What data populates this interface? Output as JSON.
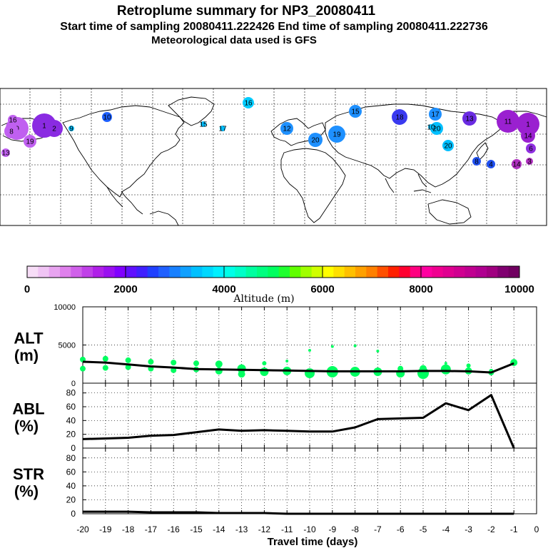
{
  "header": {
    "title": "Retroplume summary for NP3_20080411",
    "sampling": "Start time of sampling 20080411.222426     End time of sampling 20080411.222736",
    "met": "Meteorological data used is GFS"
  },
  "map": {
    "labels": [
      {
        "t": "0",
        "c": "#c060f0"
      },
      {
        "t": "1",
        "c": "#8a2be2"
      },
      {
        "t": "2",
        "c": "#8a2be2"
      },
      {
        "t": "16",
        "c": "#c060f0"
      },
      {
        "t": "19",
        "c": "#c060f0"
      },
      {
        "t": "8",
        "c": "#c060f0"
      },
      {
        "t": "13",
        "c": "#c060f0"
      },
      {
        "t": "10",
        "c": "#1e60ff"
      },
      {
        "t": "9",
        "c": "#00bfff"
      },
      {
        "t": "15",
        "c": "#00bfff"
      },
      {
        "t": "17",
        "c": "#00bfff"
      },
      {
        "t": "16",
        "c": "#00ccff"
      },
      {
        "t": "12",
        "c": "#1e90ff"
      },
      {
        "t": "20",
        "c": "#1e90ff"
      },
      {
        "t": "19",
        "c": "#1e90ff"
      },
      {
        "t": "20",
        "c": "#00bfff"
      },
      {
        "t": "15",
        "c": "#1e90ff"
      },
      {
        "t": "18",
        "c": "#3a3af0"
      },
      {
        "t": "17",
        "c": "#1e90ff"
      },
      {
        "t": "20",
        "c": "#00bfff"
      },
      {
        "t": "10",
        "c": "#00bfff"
      },
      {
        "t": "13",
        "c": "#6a2be2"
      },
      {
        "t": "11",
        "c": "#9a20d0"
      },
      {
        "t": "1",
        "c": "#9a20d0"
      },
      {
        "t": "14",
        "c": "#9a20d0"
      },
      {
        "t": "8",
        "c": "#2050f0"
      },
      {
        "t": "4",
        "c": "#2050f0"
      },
      {
        "t": "6",
        "c": "#9030e0"
      },
      {
        "t": "14",
        "c": "#b030c0"
      },
      {
        "t": "3",
        "c": "#b030c0"
      }
    ]
  },
  "colorbar": {
    "colors": [
      "#f7ddf7",
      "#f0c4f4",
      "#e8a4f0",
      "#df80ec",
      "#d060ea",
      "#c040e8",
      "#b020e8",
      "#9a10f0",
      "#8000ff",
      "#6010ff",
      "#4020ff",
      "#2040ff",
      "#2060ff",
      "#1880ff",
      "#10a0ff",
      "#00c0ff",
      "#00d8ff",
      "#00f0ff",
      "#00ffe8",
      "#00ffc8",
      "#00ffa0",
      "#00ff80",
      "#00ff60",
      "#20ff30",
      "#60ff00",
      "#a0ff00",
      "#d0ff00",
      "#ffff00",
      "#ffe000",
      "#ffc000",
      "#ffa000",
      "#ff8000",
      "#ff5000",
      "#ff2000",
      "#ff0030",
      "#ff0080",
      "#ff00a0",
      "#f00090",
      "#e00090",
      "#d00090",
      "#c00090",
      "#b00090",
      "#a00080",
      "#800070",
      "#700060"
    ],
    "tick_labels": [
      "0",
      "2000",
      "4000",
      "6000",
      "8000",
      "10000"
    ],
    "label": "Altitude (m)"
  },
  "chart_data": [
    {
      "type": "line",
      "panel": "ALT",
      "ylabel_top": "ALT",
      "ylabel_unit": "(m)",
      "ylim": [
        0,
        10000
      ],
      "yticks": [
        "0",
        "5000",
        "10000"
      ],
      "x": [
        -20,
        -19,
        -18,
        -17,
        -16,
        -15,
        -14,
        -13,
        -12,
        -11,
        -10,
        -9,
        -8,
        -7,
        -6,
        -5,
        -4,
        -3,
        -2,
        -1
      ],
      "series": [
        {
          "name": "ALT mean",
          "values": [
            2800,
            2700,
            2450,
            2200,
            2050,
            1850,
            1800,
            1750,
            1700,
            1650,
            1600,
            1550,
            1550,
            1550,
            1550,
            1600,
            1600,
            1550,
            1400,
            2600
          ]
        }
      ],
      "scatter_color": "#00ff60",
      "scatter": [
        {
          "x": -20,
          "y": 3100,
          "r": 4
        },
        {
          "x": -20,
          "y": 1900,
          "r": 4
        },
        {
          "x": -19,
          "y": 3200,
          "r": 4
        },
        {
          "x": -19,
          "y": 2000,
          "r": 4
        },
        {
          "x": -18,
          "y": 3000,
          "r": 4
        },
        {
          "x": -18,
          "y": 2100,
          "r": 4
        },
        {
          "x": -17,
          "y": 2800,
          "r": 4
        },
        {
          "x": -17,
          "y": 1900,
          "r": 4
        },
        {
          "x": -16,
          "y": 2700,
          "r": 4
        },
        {
          "x": -16,
          "y": 1700,
          "r": 4
        },
        {
          "x": -15,
          "y": 2600,
          "r": 4
        },
        {
          "x": -15,
          "y": 1800,
          "r": 4
        },
        {
          "x": -14,
          "y": 2500,
          "r": 5
        },
        {
          "x": -14,
          "y": 1600,
          "r": 5
        },
        {
          "x": -13,
          "y": 1900,
          "r": 6
        },
        {
          "x": -13,
          "y": 1200,
          "r": 5
        },
        {
          "x": -12,
          "y": 2600,
          "r": 3
        },
        {
          "x": -12,
          "y": 1500,
          "r": 6
        },
        {
          "x": -11,
          "y": 2900,
          "r": 2
        },
        {
          "x": -11,
          "y": 1600,
          "r": 6
        },
        {
          "x": -10,
          "y": 4300,
          "r": 2
        },
        {
          "x": -10,
          "y": 1300,
          "r": 7
        },
        {
          "x": -9,
          "y": 4800,
          "r": 2
        },
        {
          "x": -9,
          "y": 1500,
          "r": 8
        },
        {
          "x": -8,
          "y": 4900,
          "r": 2
        },
        {
          "x": -8,
          "y": 1500,
          "r": 7
        },
        {
          "x": -7,
          "y": 4200,
          "r": 2
        },
        {
          "x": -7,
          "y": 1500,
          "r": 6
        },
        {
          "x": -6,
          "y": 1300,
          "r": 6
        },
        {
          "x": -6,
          "y": 1900,
          "r": 4
        },
        {
          "x": -5,
          "y": 1300,
          "r": 8
        },
        {
          "x": -5,
          "y": 1900,
          "r": 5
        },
        {
          "x": -4,
          "y": 1800,
          "r": 7
        },
        {
          "x": -4,
          "y": 2600,
          "r": 2
        },
        {
          "x": -3,
          "y": 1600,
          "r": 5
        },
        {
          "x": -3,
          "y": 2300,
          "r": 3
        },
        {
          "x": -2,
          "y": 1400,
          "r": 4
        },
        {
          "x": -2,
          "y": 1600,
          "r": 3
        },
        {
          "x": -1,
          "y": 2700,
          "r": 5
        }
      ]
    },
    {
      "type": "line",
      "panel": "ABL",
      "ylabel_top": "ABL",
      "ylabel_unit": "(%)",
      "ylim": [
        0,
        90
      ],
      "yticks": [
        "0",
        "20",
        "40",
        "60",
        "80"
      ],
      "x": [
        -20,
        -19,
        -18,
        -17,
        -16,
        -15,
        -14,
        -13,
        -12,
        -11,
        -10,
        -9,
        -8,
        -7,
        -6,
        -5,
        -4,
        -3,
        -2,
        -1
      ],
      "series": [
        {
          "name": "ABL",
          "values": [
            13,
            14,
            15,
            18,
            19,
            23,
            27,
            25,
            26,
            25,
            24,
            24,
            30,
            42,
            43,
            44,
            65,
            55,
            77,
            0
          ]
        }
      ]
    },
    {
      "type": "line",
      "panel": "STR",
      "ylabel_top": "STR",
      "ylabel_unit": "(%)",
      "ylim": [
        0,
        90
      ],
      "yticks": [
        "0",
        "20",
        "40",
        "60",
        "80"
      ],
      "x": [
        -20,
        -19,
        -18,
        -17,
        -16,
        -15,
        -14,
        -13,
        -12,
        -11,
        -10,
        -9,
        -8,
        -7,
        -6,
        -5,
        -4,
        -3,
        -2,
        -1
      ],
      "series": [
        {
          "name": "STR",
          "values": [
            3,
            3,
            3,
            2,
            2,
            2,
            1,
            1,
            1,
            0,
            0,
            0,
            0,
            0,
            0,
            0,
            0,
            0,
            0,
            0
          ]
        }
      ],
      "xlabel": "Travel time (days)",
      "xticks": [
        "-20",
        "-19",
        "-18",
        "-17",
        "-16",
        "-15",
        "-14",
        "-13",
        "-12",
        "-11",
        "-10",
        "-9",
        "-8",
        "-7",
        "-6",
        "-5",
        "-4",
        "-3",
        "-2",
        "-1",
        "0"
      ]
    }
  ]
}
